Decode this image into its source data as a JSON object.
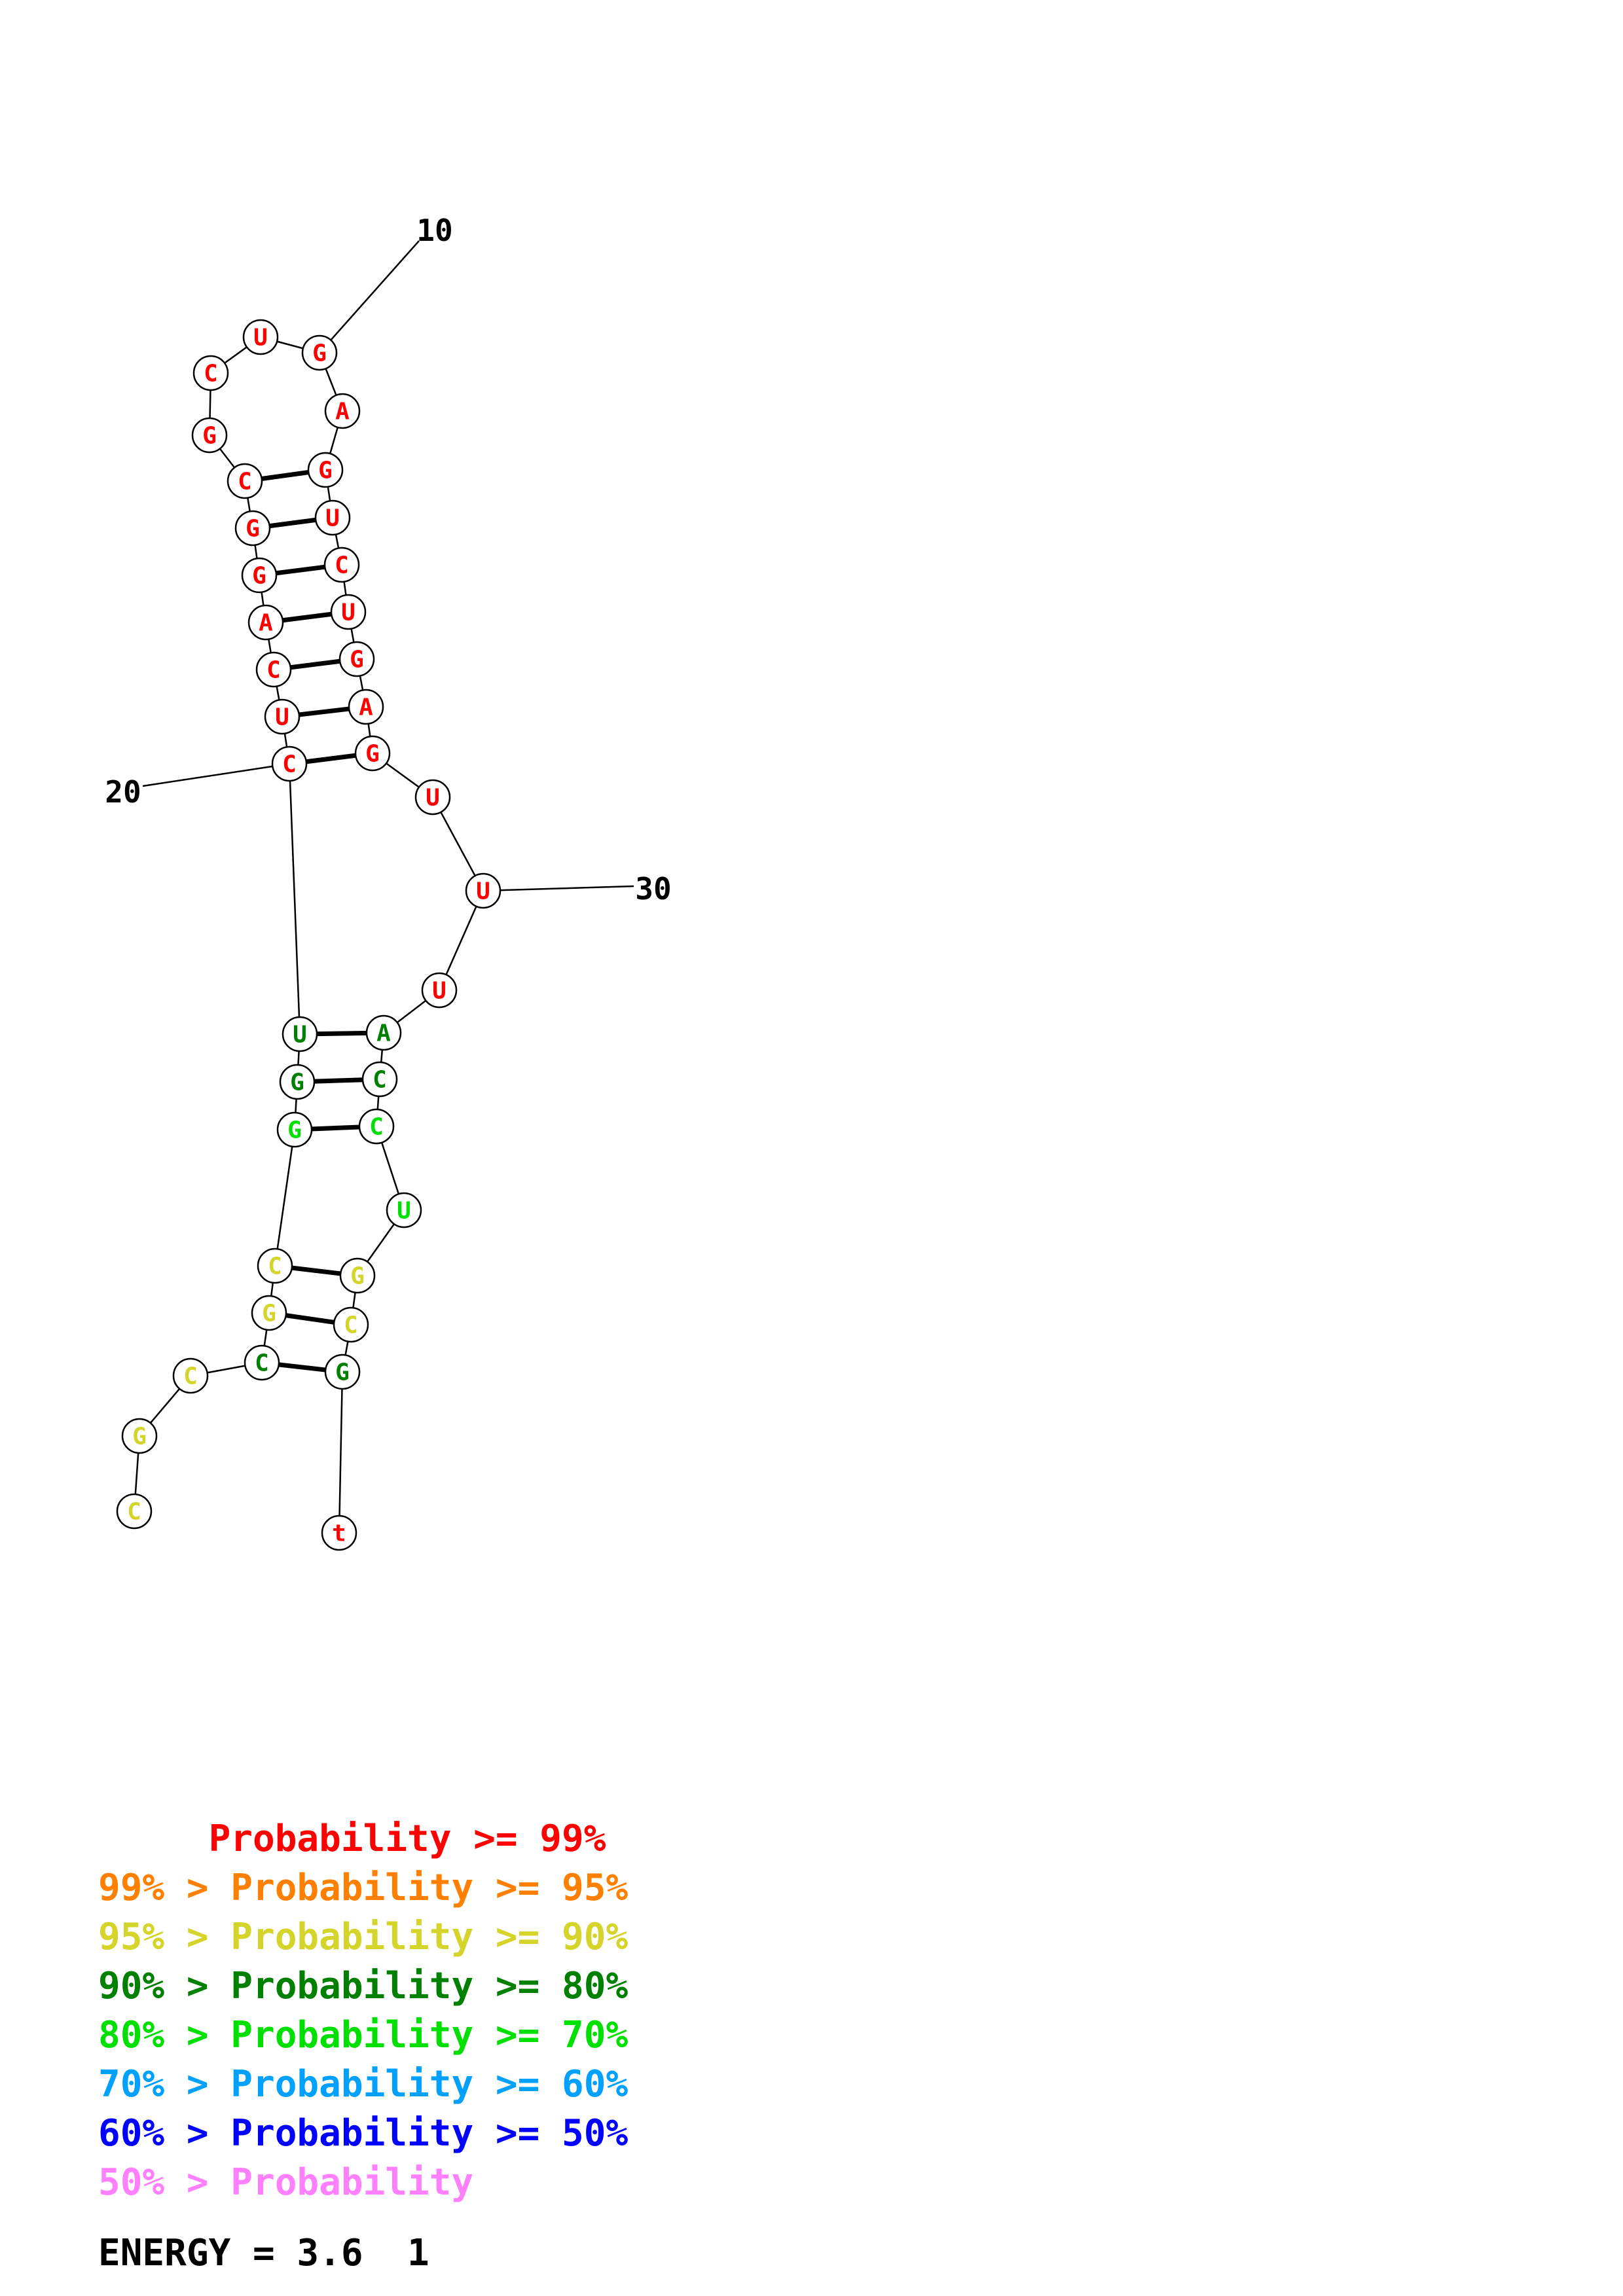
{
  "colors": {
    "red": "#ff0000",
    "orange": "#ff8000",
    "yellow": "#d4d42a",
    "darkgreen": "#008000",
    "green": "#00e000",
    "lightblue": "#00a0ff",
    "blue": "#0000ff",
    "pink": "#ff80ff",
    "black": "#000000"
  },
  "numbers": [
    "20",
    "10",
    "30"
  ],
  "nucleotides": [
    {
      "base": "C",
      "color": "yellow"
    },
    {
      "base": "G",
      "color": "yellow"
    },
    {
      "base": "C",
      "color": "yellow"
    },
    {
      "base": "C",
      "color": "darkgreen"
    },
    {
      "base": "G",
      "color": "yellow"
    },
    {
      "base": "C",
      "color": "yellow"
    },
    {
      "base": "G",
      "color": "green"
    },
    {
      "base": "G",
      "color": "darkgreen"
    },
    {
      "base": "U",
      "color": "darkgreen"
    },
    {
      "base": "C",
      "color": "red"
    },
    {
      "base": "U",
      "color": "red"
    },
    {
      "base": "C",
      "color": "red"
    },
    {
      "base": "A",
      "color": "red"
    },
    {
      "base": "G",
      "color": "red"
    },
    {
      "base": "G",
      "color": "red"
    },
    {
      "base": "C",
      "color": "red"
    },
    {
      "base": "G",
      "color": "red"
    },
    {
      "base": "C",
      "color": "red"
    },
    {
      "base": "U",
      "color": "red"
    },
    {
      "base": "G",
      "color": "red"
    },
    {
      "base": "A",
      "color": "red"
    },
    {
      "base": "G",
      "color": "red"
    },
    {
      "base": "U",
      "color": "red"
    },
    {
      "base": "C",
      "color": "red"
    },
    {
      "base": "U",
      "color": "red"
    },
    {
      "base": "G",
      "color": "red"
    },
    {
      "base": "A",
      "color": "red"
    },
    {
      "base": "G",
      "color": "red"
    },
    {
      "base": "U",
      "color": "red"
    },
    {
      "base": "U",
      "color": "red"
    },
    {
      "base": "U",
      "color": "red"
    },
    {
      "base": "A",
      "color": "darkgreen"
    },
    {
      "base": "C",
      "color": "darkgreen"
    },
    {
      "base": "C",
      "color": "green"
    },
    {
      "base": "U",
      "color": "green"
    },
    {
      "base": "G",
      "color": "yellow"
    },
    {
      "base": "C",
      "color": "yellow"
    },
    {
      "base": "G",
      "color": "darkgreen"
    },
    {
      "base": "t",
      "color": "red"
    }
  ],
  "pairs": [
    [
      4,
      38
    ],
    [
      5,
      37
    ],
    [
      6,
      36
    ],
    [
      7,
      34
    ],
    [
      8,
      33
    ],
    [
      9,
      32
    ],
    [
      10,
      28
    ],
    [
      11,
      27
    ],
    [
      12,
      26
    ],
    [
      13,
      25
    ],
    [
      14,
      24
    ],
    [
      15,
      23
    ],
    [
      16,
      22
    ]
  ],
  "legend": [
    {
      "text": "     Probability >= 99%",
      "color": "red"
    },
    {
      "text": "99% > Probability >= 95%",
      "color": "orange"
    },
    {
      "text": "95% > Probability >= 90%",
      "color": "yellow"
    },
    {
      "text": "90% > Probability >= 80%",
      "color": "darkgreen"
    },
    {
      "text": "80% > Probability >= 70%",
      "color": "green"
    },
    {
      "text": "70% > Probability >= 60%",
      "color": "lightblue"
    },
    {
      "text": "60% > Probability >= 50%",
      "color": "blue"
    },
    {
      "text": "50% > Probability",
      "color": "pink"
    }
  ],
  "energy": "ENERGY = 3.6  1"
}
